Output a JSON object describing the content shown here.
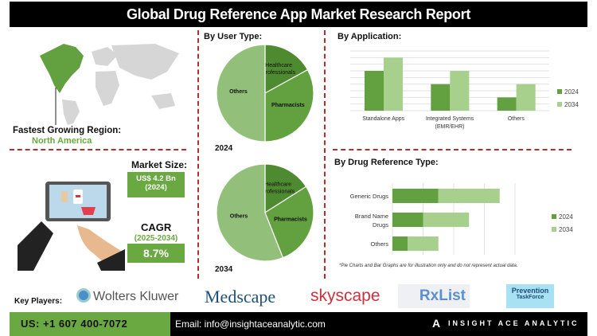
{
  "title": "Global Drug Reference App Market Research Report",
  "region": {
    "label": "Fastest Growing Region:",
    "value": "North America"
  },
  "market_size": {
    "label": "Market Size:",
    "value": "US$ 4.2 Bn",
    "year": "(2024)"
  },
  "cagr": {
    "label": "CAGR",
    "period": "(2025-2034)",
    "value": "8.7%"
  },
  "colors": {
    "dark_green": "#4e8a30",
    "mid_green": "#62a040",
    "light_green": "#a8d08d",
    "pie_light": "#92c07a",
    "red_dash": "#b03030"
  },
  "chart_data": [
    {
      "type": "pie",
      "title": "By User Type:",
      "caption": "2024",
      "slices": [
        {
          "label": "Healthcare Professionals",
          "value": 17
        },
        {
          "label": "Pharmacists",
          "value": 33
        },
        {
          "label": "Others",
          "value": 50
        }
      ]
    },
    {
      "type": "pie",
      "caption": "2034",
      "slices": [
        {
          "label": "Healthcare Professionals",
          "value": 16
        },
        {
          "label": "Pharmacists",
          "value": 28
        },
        {
          "label": "Others",
          "value": 56
        }
      ]
    },
    {
      "type": "bar",
      "title": "By Application:",
      "categories": [
        "Standalone Apps",
        "Integrated Systems (EMR/EHR)",
        "Others"
      ],
      "series": [
        {
          "name": "2024",
          "values": [
            3,
            2,
            1
          ]
        },
        {
          "name": "2034",
          "values": [
            4,
            3,
            2
          ]
        }
      ],
      "ylim": [
        0,
        4.5
      ],
      "grid": true,
      "legend": "right"
    },
    {
      "type": "bar",
      "orientation": "horizontal",
      "stacked": true,
      "title": "By Drug Reference Type:",
      "categories": [
        "Generic Drugs",
        "Brand Name Drugs",
        "Others"
      ],
      "series": [
        {
          "name": "2024",
          "values": [
            1.5,
            1,
            0.5
          ]
        },
        {
          "name": "2034",
          "values": [
            2,
            1.5,
            1
          ]
        }
      ],
      "xlim": [
        0,
        4
      ],
      "grid": true,
      "legend": "right"
    }
  ],
  "footnote": "*Pie Charts and Bar Graphs are for illustration only and do not represent actual data.",
  "key_players": {
    "label": "Key Players:",
    "logos": [
      "Wolters Kluwer",
      "Medscape",
      "skyscape",
      "RxList",
      "Prevention",
      "TaskForce"
    ]
  },
  "footer": {
    "phone": "US: +1 607 400-7072",
    "email": "Email: info@insightaceanalytic.com",
    "brand": "INSIGHT ACE ANALYTIC"
  }
}
